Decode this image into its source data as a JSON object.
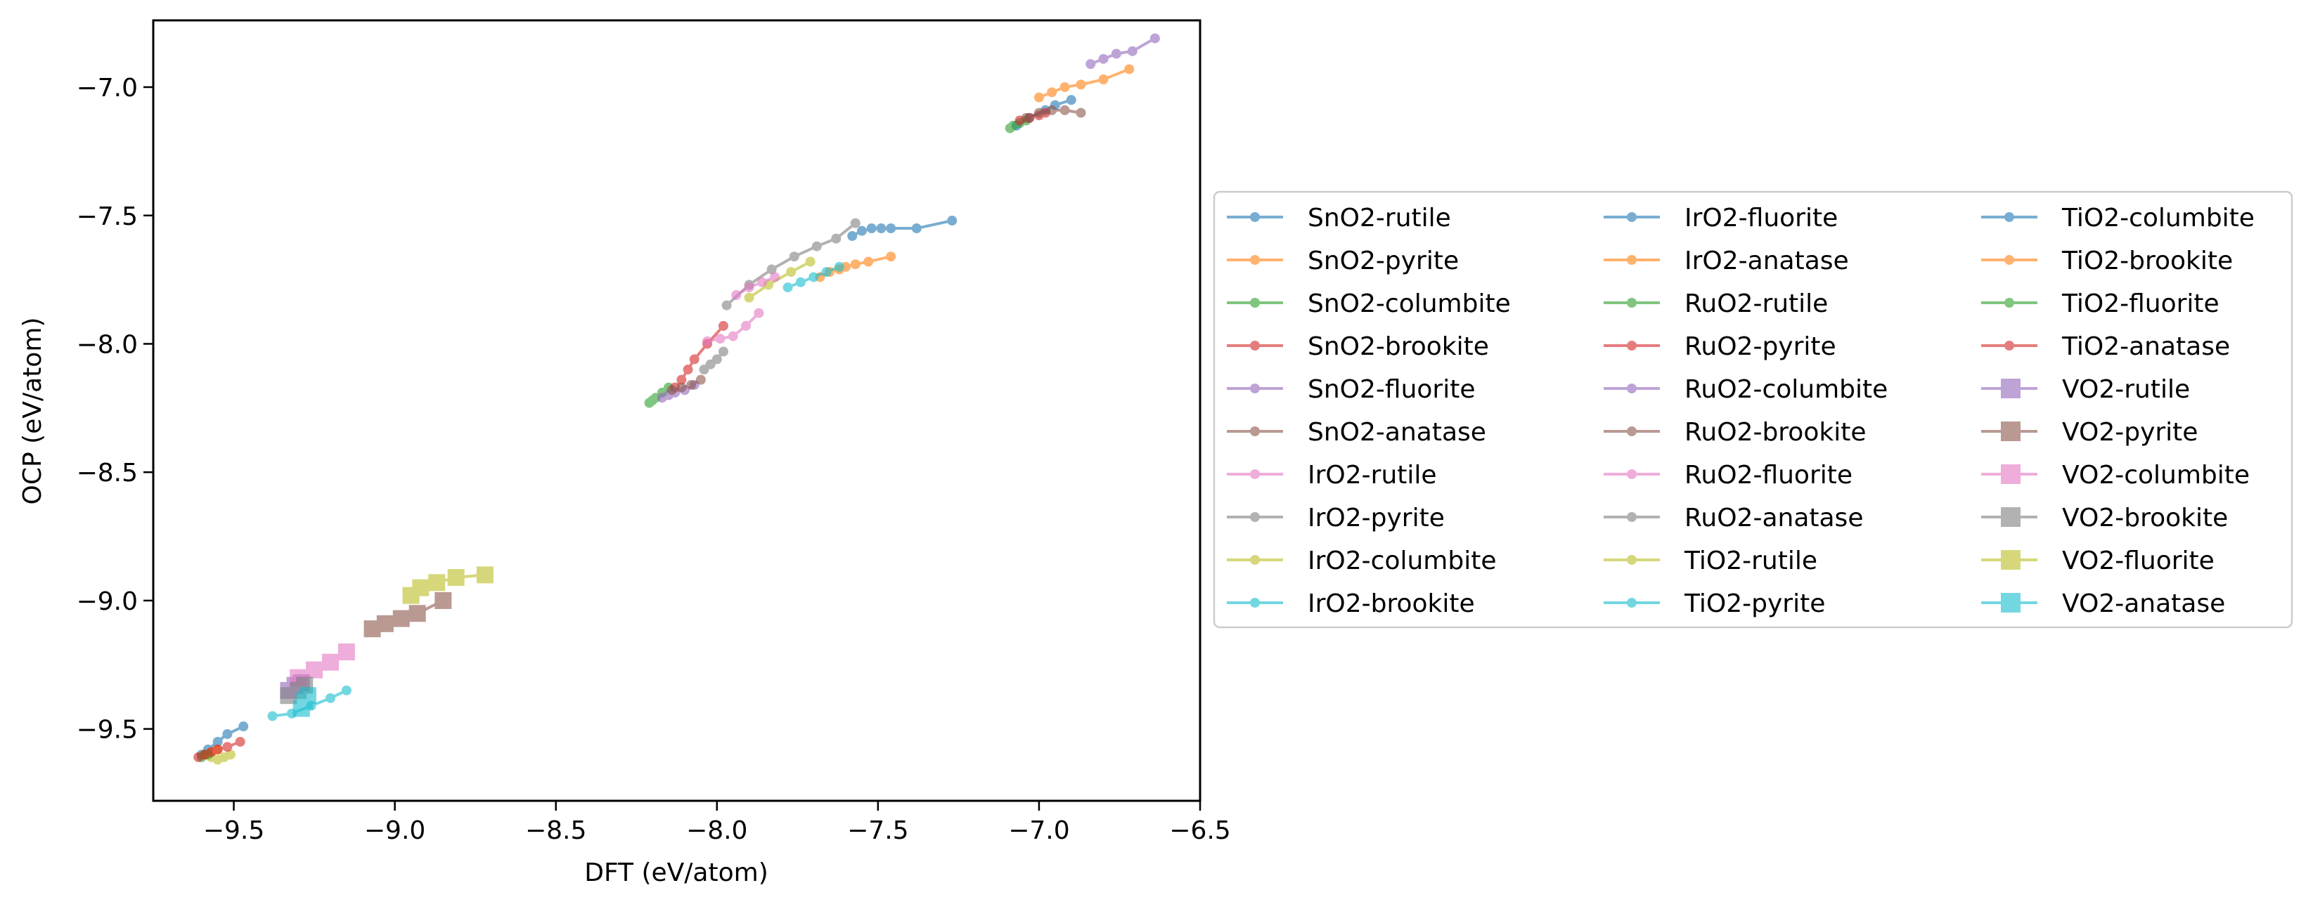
{
  "chart_data": {
    "type": "scatter",
    "title": "",
    "xlabel": "DFT (eV/atom)",
    "ylabel": "OCP (eV/atom)",
    "xlim": [
      -9.75,
      -6.5
    ],
    "ylim": [
      -9.78,
      -6.74
    ],
    "xticks": [
      -9.5,
      -9.0,
      -8.5,
      -8.0,
      -7.5,
      -7.0,
      -6.5
    ],
    "yticks": [
      -9.5,
      -9.0,
      -8.5,
      -8.0,
      -7.5,
      -7.0
    ],
    "xtick_labels": [
      "−9.5",
      "−9.0",
      "−8.5",
      "−8.0",
      "−7.5",
      "−7.0",
      "−6.5"
    ],
    "ytick_labels": [
      "−9.5",
      "−9.0",
      "−8.5",
      "−8.0",
      "−7.5",
      "−7.0"
    ],
    "grid": false,
    "legend_position": "outside right",
    "legend_columns": 3,
    "series": [
      {
        "name": "SnO2-rutile",
        "color": "#1f77b4",
        "marker": "circle",
        "x": [
          -7.58,
          -7.55,
          -7.52,
          -7.49,
          -7.46,
          -7.38,
          -7.27
        ],
        "y": [
          -7.58,
          -7.56,
          -7.55,
          -7.55,
          -7.55,
          -7.55,
          -7.52
        ]
      },
      {
        "name": "SnO2-pyrite",
        "color": "#ff7f0e",
        "marker": "circle",
        "x": [
          -7.68,
          -7.65,
          -7.62,
          -7.6,
          -7.57,
          -7.53,
          -7.46
        ],
        "y": [
          -7.74,
          -7.72,
          -7.71,
          -7.7,
          -7.69,
          -7.68,
          -7.66
        ]
      },
      {
        "name": "SnO2-columbite",
        "color": "#2ca02c",
        "marker": "circle",
        "x": [
          -8.21,
          -8.2,
          -8.19,
          -8.17,
          -8.15
        ],
        "y": [
          -8.23,
          -8.22,
          -8.21,
          -8.19,
          -8.17
        ]
      },
      {
        "name": "SnO2-brookite",
        "color": "#d62728",
        "marker": "circle",
        "x": [
          -8.13,
          -8.11,
          -8.09,
          -8.07,
          -8.03,
          -7.98
        ],
        "y": [
          -8.17,
          -8.14,
          -8.1,
          -8.06,
          -8.0,
          -7.93
        ]
      },
      {
        "name": "SnO2-fluorite",
        "color": "#9467bd",
        "marker": "circle",
        "x": [
          -8.17,
          -8.15,
          -8.13,
          -8.1,
          -8.07
        ],
        "y": [
          -8.21,
          -8.2,
          -8.19,
          -8.18,
          -8.16
        ]
      },
      {
        "name": "SnO2-anatase",
        "color": "#8c564b",
        "marker": "circle",
        "x": [
          -8.14,
          -8.11,
          -8.08,
          -8.05
        ],
        "y": [
          -8.18,
          -8.17,
          -8.16,
          -8.14
        ]
      },
      {
        "name": "IrO2-rutile",
        "color": "#e377c2",
        "marker": "circle",
        "x": [
          -8.03,
          -7.99,
          -7.95,
          -7.91,
          -7.87
        ],
        "y": [
          -7.99,
          -7.98,
          -7.97,
          -7.93,
          -7.88
        ]
      },
      {
        "name": "IrO2-pyrite",
        "color": "#7f7f7f",
        "marker": "circle",
        "x": [
          -7.97,
          -7.9,
          -7.83,
          -7.76,
          -7.69,
          -7.63,
          -7.57
        ],
        "y": [
          -7.85,
          -7.77,
          -7.71,
          -7.66,
          -7.62,
          -7.59,
          -7.53
        ]
      },
      {
        "name": "IrO2-columbite",
        "color": "#bcbd22",
        "marker": "circle",
        "x": [
          -7.9,
          -7.84,
          -7.77,
          -7.71
        ],
        "y": [
          -7.82,
          -7.77,
          -7.72,
          -7.68
        ]
      },
      {
        "name": "IrO2-brookite",
        "color": "#17becf",
        "marker": "circle",
        "x": [
          -7.78,
          -7.74,
          -7.7,
          -7.66,
          -7.62
        ],
        "y": [
          -7.78,
          -7.76,
          -7.74,
          -7.72,
          -7.7
        ]
      },
      {
        "name": "IrO2-fluorite",
        "color": "#1f77b4",
        "marker": "circle",
        "x": [
          -7.07,
          -7.03,
          -6.98,
          -6.95,
          -6.9
        ],
        "y": [
          -7.15,
          -7.12,
          -7.09,
          -7.07,
          -7.05
        ]
      },
      {
        "name": "IrO2-anatase",
        "color": "#ff7f0e",
        "marker": "circle",
        "x": [
          -7.0,
          -6.96,
          -6.92,
          -6.87,
          -6.8,
          -6.72
        ],
        "y": [
          -7.04,
          -7.02,
          -7.0,
          -6.99,
          -6.97,
          -6.93
        ]
      },
      {
        "name": "RuO2-rutile",
        "color": "#2ca02c",
        "marker": "circle",
        "x": [
          -7.09,
          -7.08,
          -7.06,
          -7.04
        ],
        "y": [
          -7.16,
          -7.15,
          -7.14,
          -7.13
        ]
      },
      {
        "name": "RuO2-pyrite",
        "color": "#d62728",
        "marker": "circle",
        "x": [
          -7.06,
          -7.03,
          -7.0,
          -6.98
        ],
        "y": [
          -7.13,
          -7.12,
          -7.11,
          -7.1
        ]
      },
      {
        "name": "RuO2-columbite",
        "color": "#9467bd",
        "marker": "circle",
        "x": [
          -6.84,
          -6.8,
          -6.76,
          -6.71,
          -6.64
        ],
        "y": [
          -6.91,
          -6.89,
          -6.87,
          -6.86,
          -6.81
        ]
      },
      {
        "name": "RuO2-brookite",
        "color": "#8c564b",
        "marker": "circle",
        "x": [
          -7.04,
          -7.0,
          -6.96,
          -6.92,
          -6.87
        ],
        "y": [
          -7.12,
          -7.1,
          -7.09,
          -7.09,
          -7.1
        ]
      },
      {
        "name": "RuO2-fluorite",
        "color": "#e377c2",
        "marker": "circle",
        "x": [
          -7.94,
          -7.9,
          -7.86,
          -7.82
        ],
        "y": [
          -7.81,
          -7.78,
          -7.76,
          -7.74
        ]
      },
      {
        "name": "RuO2-anatase",
        "color": "#7f7f7f",
        "marker": "circle",
        "x": [
          -8.04,
          -8.02,
          -8.0,
          -7.98
        ],
        "y": [
          -8.1,
          -8.08,
          -8.06,
          -8.03
        ]
      },
      {
        "name": "TiO2-rutile",
        "color": "#bcbd22",
        "marker": "circle",
        "x": [
          -9.57,
          -9.55,
          -9.53,
          -9.51
        ],
        "y": [
          -9.61,
          -9.62,
          -9.61,
          -9.6
        ]
      },
      {
        "name": "TiO2-pyrite",
        "color": "#17becf",
        "marker": "circle",
        "x": [
          -9.38,
          -9.32,
          -9.26,
          -9.2,
          -9.15
        ],
        "y": [
          -9.45,
          -9.44,
          -9.41,
          -9.38,
          -9.35
        ]
      },
      {
        "name": "TiO2-columbite",
        "color": "#1f77b4",
        "marker": "circle",
        "x": [
          -9.6,
          -9.58,
          -9.55,
          -9.52,
          -9.47
        ],
        "y": [
          -9.6,
          -9.58,
          -9.55,
          -9.52,
          -9.49
        ]
      },
      {
        "name": "TiO2-brookite",
        "color": "#ff7f0e",
        "marker": "circle",
        "x": [
          -9.59,
          -9.57,
          -9.55
        ],
        "y": [
          -9.6,
          -9.59,
          -9.58
        ]
      },
      {
        "name": "TiO2-fluorite",
        "color": "#2ca02c",
        "marker": "circle",
        "x": [
          -9.6,
          -9.59,
          -9.58
        ],
        "y": [
          -9.61,
          -9.6,
          -9.6
        ]
      },
      {
        "name": "TiO2-anatase",
        "color": "#d62728",
        "marker": "circle",
        "x": [
          -9.61,
          -9.59,
          -9.57,
          -9.55,
          -9.52,
          -9.48
        ],
        "y": [
          -9.61,
          -9.6,
          -9.59,
          -9.58,
          -9.57,
          -9.55
        ]
      },
      {
        "name": "VO2-rutile",
        "color": "#9467bd",
        "marker": "square",
        "x": [
          -9.33,
          -9.31,
          -9.29
        ],
        "y": [
          -9.35,
          -9.33,
          -9.32
        ]
      },
      {
        "name": "VO2-pyrite",
        "color": "#8c564b",
        "marker": "square",
        "x": [
          -9.07,
          -9.03,
          -8.98,
          -8.93,
          -8.85
        ],
        "y": [
          -9.11,
          -9.09,
          -9.07,
          -9.05,
          -9.0
        ]
      },
      {
        "name": "VO2-columbite",
        "color": "#e377c2",
        "marker": "square",
        "x": [
          -9.3,
          -9.25,
          -9.2,
          -9.15
        ],
        "y": [
          -9.3,
          -9.27,
          -9.24,
          -9.2
        ]
      },
      {
        "name": "VO2-brookite",
        "color": "#7f7f7f",
        "marker": "square",
        "x": [
          -9.33,
          -9.3,
          -9.28
        ],
        "y": [
          -9.37,
          -9.35,
          -9.33
        ]
      },
      {
        "name": "VO2-fluorite",
        "color": "#bcbd22",
        "marker": "square",
        "x": [
          -8.95,
          -8.92,
          -8.87,
          -8.81,
          -8.72
        ],
        "y": [
          -8.98,
          -8.95,
          -8.93,
          -8.91,
          -8.9
        ]
      },
      {
        "name": "VO2-anatase",
        "color": "#17becf",
        "marker": "square",
        "x": [
          -9.29,
          -9.28,
          -9.27
        ],
        "y": [
          -9.42,
          -9.39,
          -9.37
        ]
      }
    ]
  }
}
